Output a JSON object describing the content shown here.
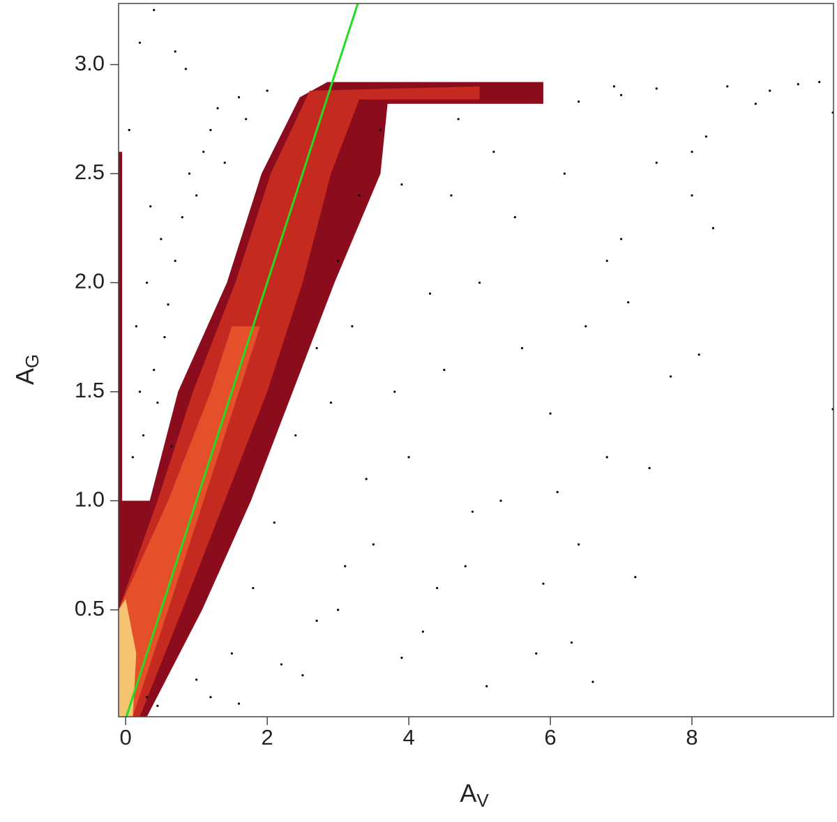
{
  "chart_data": {
    "type": "scatter",
    "xlabel": {
      "main": "A",
      "sub": "V"
    },
    "ylabel": {
      "main": "A",
      "sub": "G"
    },
    "xlim": [
      -0.1,
      10
    ],
    "ylim": [
      0.01,
      3.28
    ],
    "xticks": [
      0,
      2,
      4,
      6,
      8
    ],
    "yticks": [
      0.5,
      {
        "value": 1,
        "label": "1.0"
      },
      1.5,
      {
        "value": 2,
        "label": "2.0"
      },
      2.5,
      {
        "value": 3,
        "label": "3.0"
      }
    ],
    "density": [
      {
        "color": "#8b0c1c",
        "x": [
          -0.1,
          -0.1,
          -0.05,
          -0.05,
          0.34,
          0.74,
          1.43,
          1.92,
          2.46,
          2.85,
          5.9,
          5.9,
          3.7,
          3.6,
          2.95,
          2.36,
          1.77,
          1.08,
          0.3
        ],
        "y": [
          0.01,
          2.6,
          2.6,
          1.0,
          1.0,
          1.5,
          2.0,
          2.5,
          2.85,
          2.92,
          2.92,
          2.82,
          2.82,
          2.5,
          2.0,
          1.5,
          1.0,
          0.5,
          0.01
        ]
      },
      {
        "color": "#c42a1f",
        "x": [
          -0.1,
          -0.1,
          0.45,
          0.95,
          1.55,
          2.05,
          2.6,
          5.0,
          5.0,
          3.3,
          2.9,
          2.5,
          2.0,
          1.4,
          0.8,
          0.2
        ],
        "y": [
          0.01,
          0.5,
          1.0,
          1.5,
          2.0,
          2.5,
          2.88,
          2.9,
          2.84,
          2.84,
          2.5,
          2.0,
          1.5,
          1.0,
          0.5,
          0.01
        ]
      },
      {
        "color": "#e4502a",
        "x": [
          -0.1,
          -0.1,
          0.6,
          1.2,
          1.5,
          1.9,
          1.6,
          1.1,
          0.6,
          0.1
        ],
        "y": [
          0.01,
          0.5,
          1.0,
          1.5,
          1.8,
          1.8,
          1.5,
          1.0,
          0.5,
          0.01
        ]
      },
      {
        "color": "#f6c470",
        "x": [
          -0.1,
          -0.1,
          0.0,
          0.15,
          0.1
        ],
        "y": [
          0.01,
          0.5,
          0.55,
          0.3,
          0.01
        ]
      }
    ],
    "line": {
      "color": "#22dd22",
      "x": [
        0,
        3.28
      ],
      "y": [
        0,
        3.28
      ]
    },
    "points": {
      "color": "#000000",
      "x": [
        0.1,
        0.2,
        0.15,
        0.3,
        0.5,
        0.4,
        0.6,
        0.8,
        0.9,
        1.1,
        1.3,
        0.7,
        1.0,
        0.25,
        0.45,
        0.05,
        0.2,
        0.4,
        0.7,
        0.85,
        1.6,
        1.2,
        0.55,
        0.35,
        1.4,
        1.7,
        2.0,
        0.65,
        1.5,
        1.8,
        2.1,
        2.4,
        2.7,
        3.0,
        3.3,
        3.6,
        1.2,
        2.5,
        3.0,
        3.5,
        4.0,
        4.5,
        5.0,
        5.5,
        4.2,
        4.8,
        5.3,
        6.0,
        6.5,
        7.0,
        7.5,
        8.0,
        5.8,
        6.3,
        6.6,
        7.2,
        6.8,
        7.7,
        8.1,
        9.99,
        7.1,
        6.2,
        6.8,
        5.6,
        4.6,
        4.3,
        3.8,
        3.4,
        3.1,
        2.7,
        2.2,
        4.9,
        5.9,
        6.4,
        7.4,
        8.3,
        8.0,
        6.1,
        5.1,
        4.4,
        3.9,
        3.2,
        2.9,
        6.9,
        7.5,
        8.5,
        9.1,
        9.5,
        9.8,
        9.99,
        7.0,
        8.9,
        6.4,
        8.2,
        5.2,
        4.7,
        3.9,
        0.3,
        0.45,
        1.0,
        1.6
      ],
      "y": [
        1.2,
        1.5,
        1.8,
        2.0,
        2.2,
        1.6,
        1.9,
        2.3,
        2.5,
        2.6,
        2.8,
        2.1,
        2.4,
        1.3,
        1.45,
        2.7,
        3.1,
        3.25,
        3.06,
        2.98,
        2.85,
        2.7,
        1.75,
        2.35,
        2.55,
        2.75,
        2.88,
        1.25,
        0.3,
        0.6,
        0.9,
        1.3,
        1.7,
        2.1,
        2.4,
        2.7,
        0.1,
        0.2,
        0.5,
        0.8,
        1.2,
        1.6,
        2.0,
        2.3,
        0.4,
        0.7,
        1.0,
        1.4,
        1.8,
        2.2,
        2.55,
        2.6,
        0.3,
        0.35,
        0.17,
        0.65,
        1.2,
        1.57,
        1.67,
        1.42,
        1.91,
        2.5,
        2.1,
        1.7,
        2.4,
        1.95,
        1.5,
        1.1,
        0.7,
        0.45,
        0.25,
        0.95,
        0.62,
        0.8,
        1.15,
        2.25,
        2.4,
        1.04,
        0.15,
        0.6,
        0.28,
        1.8,
        1.45,
        2.9,
        2.89,
        2.9,
        2.88,
        2.91,
        2.92,
        2.78,
        2.86,
        2.82,
        2.83,
        2.67,
        2.6,
        2.75,
        2.45,
        0.1,
        0.06,
        0.18,
        0.07
      ]
    }
  }
}
